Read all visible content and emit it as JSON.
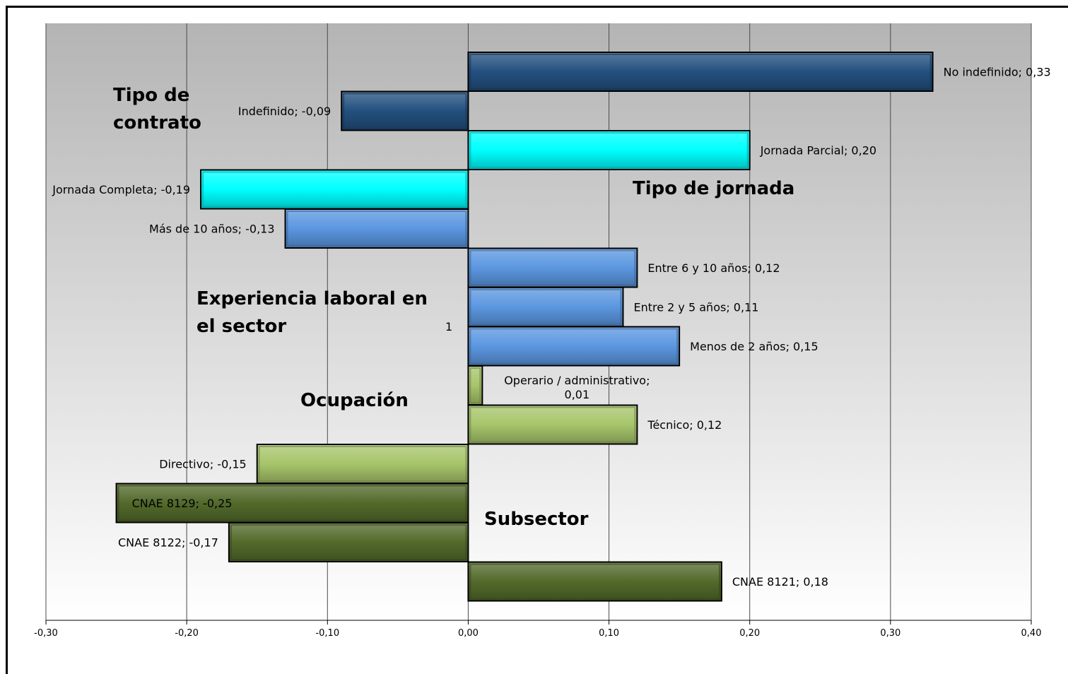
{
  "chart_data": {
    "type": "bar",
    "orientation": "horizontal",
    "xlim": [
      -0.3,
      0.4
    ],
    "x_ticks": [
      "-0,30",
      "-0,20",
      "-0,10",
      "0,00",
      "0,10",
      "0,20",
      "0,30",
      "0,40"
    ],
    "grid": true,
    "stray_label": "1",
    "colors": {
      "Tipo de contrato": "#23507f",
      "Tipo de jornada": "#00ffff",
      "Experiencia laboral en el sector": "#5b97e0",
      "Ocupación": "#a7c56b",
      "Subsector": "#536a2b"
    },
    "groups": [
      {
        "name": "Tipo de contrato",
        "label_lines": [
          "Tipo de",
          "contrato"
        ]
      },
      {
        "name": "Tipo de jornada",
        "label_lines": [
          "Tipo de jornada"
        ]
      },
      {
        "name": "Experiencia laboral en el sector",
        "label_lines": [
          "Experiencia laboral en",
          "el sector"
        ]
      },
      {
        "name": "Ocupación",
        "label_lines": [
          "Ocupación"
        ]
      },
      {
        "name": "Subsector",
        "label_lines": [
          "Subsector"
        ]
      }
    ],
    "bars": [
      {
        "group": "Tipo de contrato",
        "category": "No indefinido",
        "value": 0.33,
        "label": "No indefinido; 0,33"
      },
      {
        "group": "Tipo de contrato",
        "category": "Indefinido",
        "value": -0.09,
        "label": "Indefinido; -0,09"
      },
      {
        "group": "Tipo de jornada",
        "category": "Jornada Parcial",
        "value": 0.2,
        "label": "Jornada Parcial; 0,20"
      },
      {
        "group": "Tipo de jornada",
        "category": "Jornada Completa",
        "value": -0.19,
        "label": "Jornada Completa; -0,19"
      },
      {
        "group": "Experiencia laboral en el sector",
        "category": "Más de 10 años",
        "value": -0.13,
        "label": "Más de 10 años; -0,13"
      },
      {
        "group": "Experiencia laboral en el sector",
        "category": "Entre 6 y 10 años",
        "value": 0.12,
        "label": "Entre 6 y 10 años; 0,12"
      },
      {
        "group": "Experiencia laboral en el sector",
        "category": "Entre 2 y 5 años",
        "value": 0.11,
        "label": "Entre 2 y 5 años; 0,11"
      },
      {
        "group": "Experiencia laboral en el sector",
        "category": "Menos de 2 años",
        "value": 0.15,
        "label": "Menos de 2 años; 0,15"
      },
      {
        "group": "Ocupación",
        "category": "Operario / administrativo",
        "value": 0.01,
        "label": "Operario / administrativo; 0,01",
        "label_lines": [
          "Operario / administrativo;",
          "0,01"
        ]
      },
      {
        "group": "Ocupación",
        "category": "Técnico",
        "value": 0.12,
        "label": "Técnico; 0,12"
      },
      {
        "group": "Ocupación",
        "category": "Directivo",
        "value": -0.15,
        "label": "Directivo; -0,15"
      },
      {
        "group": "Subsector",
        "category": "CNAE 8129",
        "value": -0.25,
        "label": "CNAE 8129; -0,25"
      },
      {
        "group": "Subsector",
        "category": "CNAE 8122",
        "value": -0.17,
        "label": "CNAE 8122; -0,17"
      },
      {
        "group": "Subsector",
        "category": "CNAE 8121",
        "value": 0.18,
        "label": "CNAE 8121; 0,18"
      }
    ]
  }
}
